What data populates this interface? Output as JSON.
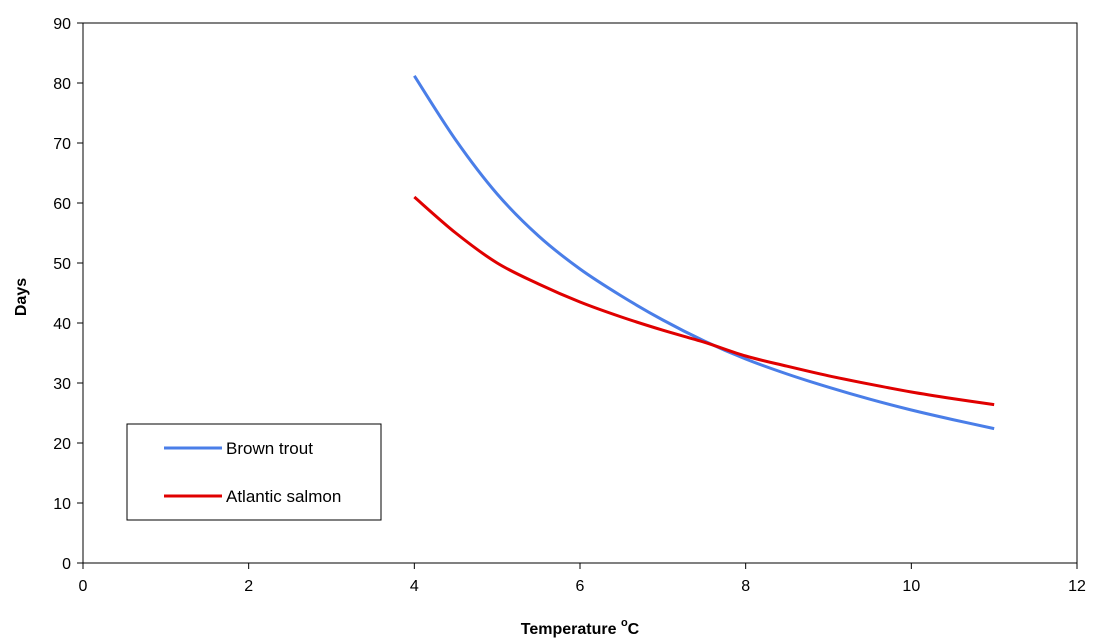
{
  "chart_data": {
    "type": "line",
    "title": "",
    "xlabel": "Temperature",
    "xlabel_sup": "o",
    "xlabel_suffix": "C",
    "ylabel": "Days",
    "xlim": [
      0,
      12
    ],
    "ylim": [
      0,
      90
    ],
    "x_ticks": [
      0,
      2,
      4,
      6,
      8,
      10,
      12
    ],
    "y_ticks": [
      0,
      10,
      20,
      30,
      40,
      50,
      60,
      70,
      80,
      90
    ],
    "grid": false,
    "legend_position": "lower-left",
    "series": [
      {
        "name": "Brown trout",
        "color": "#4a7ee8",
        "x": [
          4,
          4.5,
          5,
          5.5,
          6,
          6.5,
          7,
          7.5,
          8,
          8.5,
          9,
          9.5,
          10,
          10.5,
          11
        ],
        "y": [
          81.2,
          70.5,
          61.5,
          54.5,
          49,
          44.5,
          40.5,
          37,
          34,
          31.5,
          29.3,
          27.3,
          25.5,
          23.9,
          22.4
        ]
      },
      {
        "name": "Atlantic salmon",
        "color": "#e00000",
        "x": [
          4,
          4.5,
          5,
          5.5,
          6,
          6.5,
          7,
          7.5,
          8,
          8.5,
          9,
          9.5,
          10,
          10.5,
          11
        ],
        "y": [
          61,
          55,
          50,
          46.5,
          43.5,
          41,
          38.8,
          36.8,
          34.5,
          32.8,
          31.2,
          29.8,
          28.5,
          27.4,
          26.4
        ]
      }
    ]
  }
}
